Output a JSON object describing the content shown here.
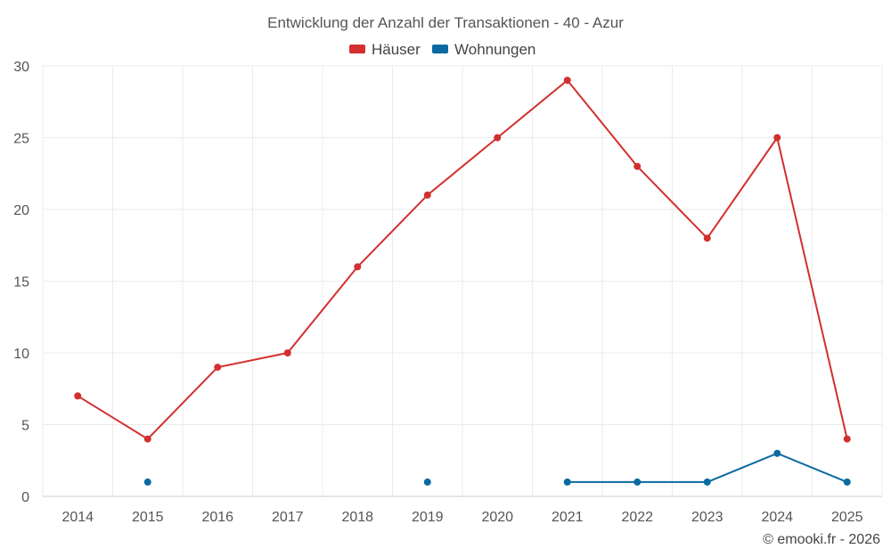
{
  "chart_data": {
    "type": "line",
    "title": "Entwicklung der Anzahl der Transaktionen - 40 - Azur",
    "categories": [
      "2014",
      "2015",
      "2016",
      "2017",
      "2018",
      "2019",
      "2020",
      "2021",
      "2022",
      "2023",
      "2024",
      "2025"
    ],
    "series": [
      {
        "name": "Häuser",
        "color": "#d32f2f",
        "values": [
          7,
          4,
          9,
          10,
          16,
          21,
          25,
          29,
          23,
          18,
          25,
          4
        ]
      },
      {
        "name": "Wohnungen",
        "color": "#0a6aa1",
        "values": [
          null,
          1,
          null,
          null,
          null,
          1,
          null,
          1,
          1,
          1,
          3,
          1
        ]
      }
    ],
    "ylim": [
      0,
      30
    ],
    "yticks": [
      "0",
      "5",
      "10",
      "15",
      "20",
      "25",
      "30"
    ],
    "xlabel": "",
    "ylabel": "",
    "grid": true,
    "legend": "top-center"
  },
  "credit": "© emooki.fr - 2026"
}
